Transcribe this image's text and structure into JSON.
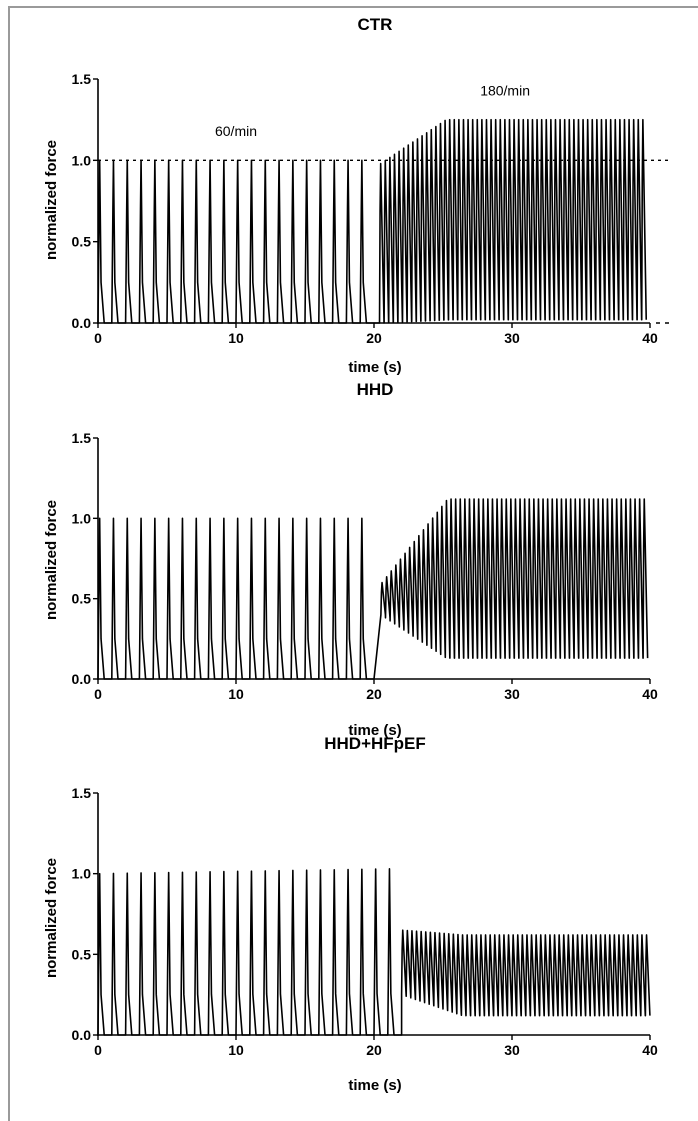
{
  "figure": {
    "frame_color": "#9a9a9a",
    "trace_color": "#000000"
  },
  "chart_data": [
    {
      "type": "line",
      "title": "CTR",
      "xlabel": "time (s)",
      "ylabel": "normalized force",
      "xlim": [
        0,
        40
      ],
      "ylim": [
        0,
        1.5
      ],
      "x_ticks": [
        "0",
        "10",
        "20",
        "30",
        "40"
      ],
      "y_ticks": [
        "0.0",
        "0.5",
        "1.0",
        "1.5"
      ],
      "reference_lines": [
        {
          "y": 1.0,
          "style": "dotted"
        },
        {
          "y": 0.0,
          "style": "dashed"
        }
      ],
      "annotations": [
        {
          "text": "60/min",
          "x": 10,
          "y": 1.15
        },
        {
          "text": "180/min",
          "x": 29.5,
          "y": 1.4
        }
      ],
      "series": [
        {
          "phases": [
            {
              "rate_per_min": 60,
              "t_start": 0,
              "t_end": 20.4,
              "peak_start": 1.0,
              "peak_end": 1.0,
              "trough_start": 0.0,
              "trough_end": 0.0
            },
            {
              "rate_per_min": 180,
              "t_start": 20.4,
              "t_end": 40,
              "peak_start": 0.98,
              "peak_end": 1.25,
              "trough_start": 0.0,
              "trough_end": 0.02
            }
          ]
        }
      ]
    },
    {
      "type": "line",
      "title": "HHD",
      "xlabel": "time (s)",
      "ylabel": "normalized force",
      "xlim": [
        0,
        40
      ],
      "ylim": [
        0,
        1.5
      ],
      "x_ticks": [
        "0",
        "10",
        "20",
        "30",
        "40"
      ],
      "y_ticks": [
        "0.0",
        "0.5",
        "1.0",
        "1.5"
      ],
      "series": [
        {
          "phases": [
            {
              "rate_per_min": 60,
              "t_start": 0,
              "t_end": 20.5,
              "peak_start": 1.0,
              "peak_end": 1.0,
              "trough_start": 0.0,
              "trough_end": 0.0
            },
            {
              "rate_per_min": 180,
              "t_start": 20.5,
              "t_end": 40,
              "peak_start": 0.6,
              "peak_end": 1.12,
              "trough_start": 0.4,
              "trough_end": 0.13
            }
          ]
        }
      ]
    },
    {
      "type": "line",
      "title": "HHD+HFpEF",
      "xlabel": "time (s)",
      "ylabel": "normalized force",
      "xlim": [
        0,
        40
      ],
      "ylim": [
        0,
        1.5
      ],
      "x_ticks": [
        "0",
        "10",
        "20",
        "30",
        "40"
      ],
      "y_ticks": [
        "0.0",
        "0.5",
        "1.0",
        "1.5"
      ],
      "series": [
        {
          "phases": [
            {
              "rate_per_min": 60,
              "t_start": 0,
              "t_end": 22,
              "peak_start": 1.0,
              "peak_end": 1.03,
              "trough_start": 0.0,
              "trough_end": 0.0
            },
            {
              "rate_per_min": 180,
              "t_start": 22,
              "t_end": 40,
              "peak_start": 0.65,
              "peak_end": 0.62,
              "trough_start": 0.25,
              "trough_end": 0.12
            }
          ]
        }
      ]
    }
  ]
}
